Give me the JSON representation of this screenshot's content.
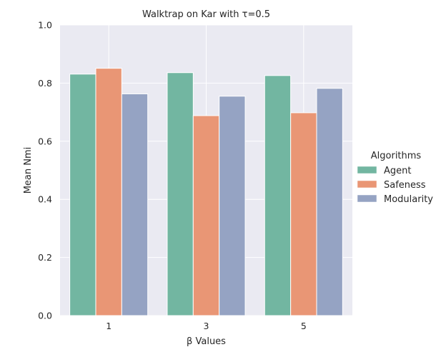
{
  "chart_data": {
    "type": "bar",
    "title": "Walktrap on Kar with τ=0.5",
    "xlabel": "β Values",
    "ylabel": "Mean Nmi",
    "categories": [
      "1",
      "3",
      "5"
    ],
    "ylim": [
      0,
      1.0
    ],
    "yticks": [
      "0.0",
      "0.2",
      "0.4",
      "0.6",
      "0.8",
      "1.0"
    ],
    "grid": true,
    "legend_title": "Algorithms",
    "legend_position": "right",
    "series": [
      {
        "name": "Agent",
        "color": "#72b6a1",
        "values": [
          0.831,
          0.836,
          0.826
        ]
      },
      {
        "name": "Safeness",
        "color": "#e99675",
        "values": [
          0.851,
          0.688,
          0.698
        ]
      },
      {
        "name": "Modularity",
        "color": "#95a3c3",
        "values": [
          0.763,
          0.755,
          0.782
        ]
      }
    ]
  }
}
